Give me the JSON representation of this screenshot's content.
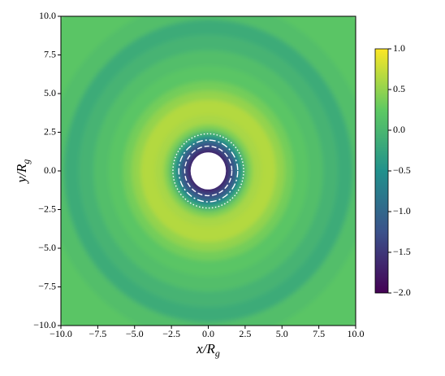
{
  "chart_data": {
    "type": "radial-heatmap",
    "xlabel": {
      "text": "x/R",
      "sub": "g"
    },
    "ylabel": {
      "text": "y/R",
      "sub": "g"
    },
    "xlim": [
      -10,
      10
    ],
    "ylim": [
      -10,
      10
    ],
    "xticks": [
      {
        "value": -10,
        "label": "−10.0"
      },
      {
        "value": -7.5,
        "label": "−7.5"
      },
      {
        "value": -5,
        "label": "−5.0"
      },
      {
        "value": -2.5,
        "label": "−2.5"
      },
      {
        "value": 0,
        "label": "0.0"
      },
      {
        "value": 2.5,
        "label": "2.5"
      },
      {
        "value": 5,
        "label": "5.0"
      },
      {
        "value": 7.5,
        "label": "7.5"
      },
      {
        "value": 10,
        "label": "10.0"
      }
    ],
    "yticks": [
      {
        "value": -10,
        "label": "−10.0"
      },
      {
        "value": -7.5,
        "label": "−7.5"
      },
      {
        "value": -5,
        "label": "−5.0"
      },
      {
        "value": -2.5,
        "label": "−2.5"
      },
      {
        "value": 0,
        "label": "0.0"
      },
      {
        "value": 2.5,
        "label": "2.5"
      },
      {
        "value": 5,
        "label": "5.0"
      },
      {
        "value": 7.5,
        "label": "7.5"
      },
      {
        "value": 10,
        "label": "10.0"
      }
    ],
    "radii": [
      14.2,
      11,
      9.8,
      8.8,
      7.8,
      6.8,
      5.8,
      5.2,
      4.6,
      3.6,
      3.0,
      2.6,
      2.3,
      2.0,
      1.7,
      1.45
    ],
    "values": [
      0.2,
      0.1,
      -0.15,
      -0.05,
      0.1,
      0.2,
      0.35,
      0.5,
      0.65,
      0.6,
      0.4,
      0.0,
      -0.5,
      -1.1,
      -1.3,
      -1.65
    ],
    "mask_radius": 1.2,
    "contours": [
      {
        "r": 1.6,
        "style": "dashed"
      },
      {
        "r": 2.0,
        "style": "dashdot"
      },
      {
        "r": 2.4,
        "style": "dotted"
      }
    ],
    "colorbar": {
      "lim": [
        -2,
        1
      ],
      "colors": [
        "#440154",
        "#3b528b",
        "#21918c",
        "#5ec962",
        "#fde725"
      ],
      "ticks": [
        {
          "value": 1,
          "label": "1.0"
        },
        {
          "value": 0.5,
          "label": "0.5"
        },
        {
          "value": 0,
          "label": "0.0"
        },
        {
          "value": -0.5,
          "label": "−0.5"
        },
        {
          "value": -1,
          "label": "−1.0"
        },
        {
          "value": -1.5,
          "label": "−1.5"
        },
        {
          "value": -2,
          "label": "−2.0"
        }
      ]
    }
  }
}
